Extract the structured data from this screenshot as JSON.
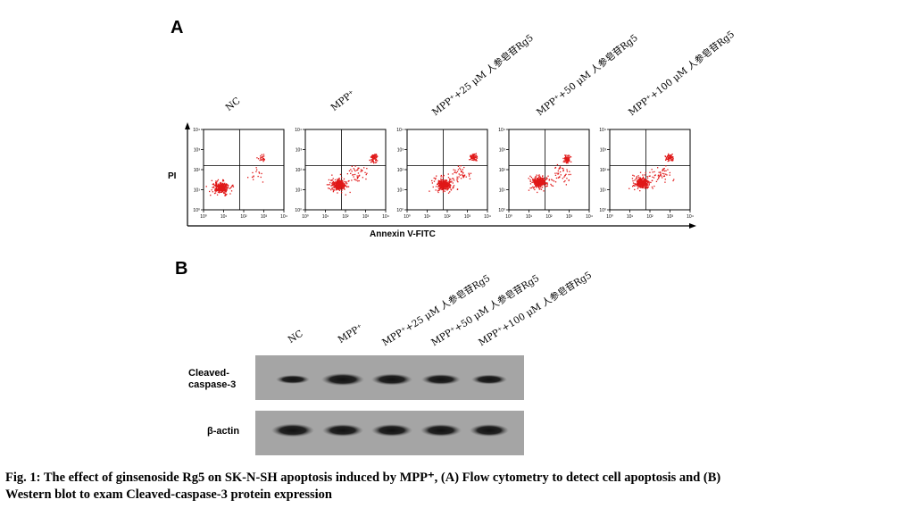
{
  "figure": {
    "panel_a_letter": "A",
    "panel_b_letter": "B",
    "flow": {
      "y_axis_title": "PI",
      "x_axis_title": "Annexin V-FITC",
      "groups": [
        "NC",
        "MPP⁺",
        "MPP⁺+25 μM 人参皂苷Rg5",
        "MPP⁺+50 μM 人参皂苷Rg5",
        "MPP⁺+100 μM 人参皂苷Rg5"
      ],
      "tick_labels": [
        "10⁰",
        "10¹",
        "10²",
        "10³",
        "10⁴"
      ],
      "dot_color": "#e01818"
    },
    "western": {
      "groups": [
        "NC",
        "MPP⁺",
        "MPP⁺+25 μM 人参皂苷Rg5",
        "MPP⁺+50 μM 人参皂苷Rg5",
        "MPP⁺+100 μM 人参皂苷Rg5"
      ],
      "rows": [
        {
          "label_line1": "Cleaved-",
          "label_line2": "caspase-3"
        },
        {
          "label_line1": "β-actin",
          "label_line2": ""
        }
      ]
    },
    "caption_line1": "Fig. 1: The effect of ginsenoside Rg5 on SK-N-SH apoptosis induced by MPP⁺, (A) Flow cytometry to detect cell apoptosis and (B)",
    "caption_line2": "Western blot to exam Cleaved-caspase-3 protein expression"
  }
}
